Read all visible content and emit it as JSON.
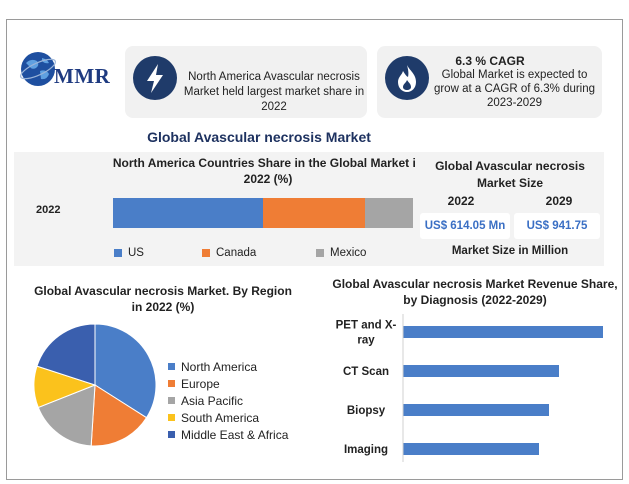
{
  "logo": {
    "text": "MMR"
  },
  "colors": {
    "us": "#4a7ec8",
    "canada": "#ef7d35",
    "mexico": "#a5a5a5",
    "navy": "#1f3b6a",
    "title_blue": "#1e3260",
    "value_blue": "#3a6fc4"
  },
  "card_region": {
    "icon": "lightning-bolt-icon",
    "text": "North America Avascular necrosis Market held largest market share in 2022"
  },
  "card_cagr": {
    "icon": "flame-icon",
    "title": "6.3 % CAGR",
    "text": "Global Market is expected to grow at a CAGR of 6.3% during 2023-2029"
  },
  "main_title": "Global Avascular necrosis Market",
  "market_size": {
    "title": "Global Avascular necrosis Market Size",
    "year_a": "2022",
    "year_b": "2029",
    "value_a": "US$ 614.05 Mn",
    "value_b": "US$ 941.75",
    "footer": "Market Size in Million"
  },
  "chart_data": [
    {
      "type": "bar",
      "stacked": true,
      "orientation": "horizontal",
      "title": "North America Countries Share in the Global Market in 2022 (%)",
      "categories": [
        "2022"
      ],
      "series": [
        {
          "name": "US",
          "values": [
            50
          ]
        },
        {
          "name": "Canada",
          "values": [
            34
          ]
        },
        {
          "name": "Mexico",
          "values": [
            16
          ]
        }
      ],
      "legend": "bottom"
    },
    {
      "type": "pie",
      "title": "Global Avascular necrosis Market. By Region in 2022 (%)",
      "labels": [
        "North America",
        "Europe",
        "Asia Pacific",
        "South America",
        "Middle East & Africa"
      ],
      "values": [
        34,
        17,
        18,
        11,
        20
      ],
      "colors": [
        "#4a7ec8",
        "#ef7d35",
        "#a5a5a5",
        "#fbc21c",
        "#3a5fae"
      ],
      "legend": "right"
    },
    {
      "type": "bar",
      "orientation": "horizontal",
      "title": "Global Avascular necrosis Market Revenue Share, by Diagnosis (2022-2029)",
      "categories": [
        "PET and X-ray",
        "CT Scan",
        "Biopsy",
        "Imaging"
      ],
      "category_labels": [
        [
          "PET and X-",
          "ray"
        ],
        [
          "CT Scan"
        ],
        [
          "Biopsy"
        ],
        [
          "Imaging"
        ]
      ],
      "values": [
        100,
        78,
        73,
        68
      ],
      "xlim": [
        0,
        100
      ],
      "grid": false,
      "color": "#4a7ec8"
    }
  ]
}
